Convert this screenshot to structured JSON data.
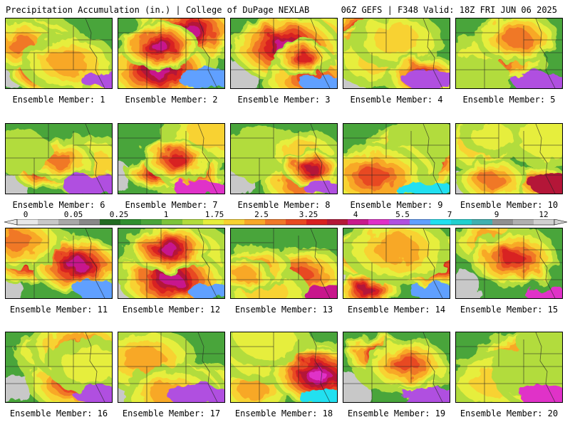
{
  "header": {
    "left": "Precipitation Accumulation (in.) | College of DuPage NEXLAB",
    "right": "06Z GEFS | F348 Valid: 18Z FRI JUN 06 2025"
  },
  "member_prefix": "Ensemble Member:",
  "members": [
    {
      "id": 1,
      "label": "Ensemble Member: 1",
      "seed": 11,
      "wet": 0.6,
      "max_level": 15
    },
    {
      "id": 2,
      "label": "Ensemble Member: 2",
      "seed": 23,
      "wet": 0.62,
      "max_level": 16
    },
    {
      "id": 3,
      "label": "Ensemble Member: 3",
      "seed": 37,
      "wet": 0.63,
      "max_level": 16
    },
    {
      "id": 4,
      "label": "Ensemble Member: 4",
      "seed": 41,
      "wet": 0.58,
      "max_level": 15
    },
    {
      "id": 5,
      "label": "Ensemble Member: 5",
      "seed": 53,
      "wet": 0.64,
      "max_level": 15
    },
    {
      "id": 6,
      "label": "Ensemble Member: 6",
      "seed": 67,
      "wet": 0.55,
      "max_level": 15
    },
    {
      "id": 7,
      "label": "Ensemble Member: 7",
      "seed": 71,
      "wet": 0.48,
      "max_level": 14
    },
    {
      "id": 8,
      "label": "Ensemble Member: 8",
      "seed": 83,
      "wet": 0.62,
      "max_level": 15
    },
    {
      "id": 9,
      "label": "Ensemble Member: 9",
      "seed": 97,
      "wet": 0.66,
      "max_level": 17
    },
    {
      "id": 10,
      "label": "Ensemble Member: 10",
      "seed": 101,
      "wet": 0.5,
      "max_level": 12
    },
    {
      "id": 11,
      "label": "Ensemble Member: 11",
      "seed": 113,
      "wet": 0.62,
      "max_level": 16
    },
    {
      "id": 12,
      "label": "Ensemble Member: 12",
      "seed": 127,
      "wet": 0.66,
      "max_level": 16
    },
    {
      "id": 13,
      "label": "Ensemble Member: 13",
      "seed": 131,
      "wet": 0.5,
      "max_level": 13
    },
    {
      "id": 14,
      "label": "Ensemble Member: 14",
      "seed": 149,
      "wet": 0.58,
      "max_level": 16
    },
    {
      "id": 15,
      "label": "Ensemble Member: 15",
      "seed": 151,
      "wet": 0.55,
      "max_level": 14
    },
    {
      "id": 16,
      "label": "Ensemble Member: 16",
      "seed": 163,
      "wet": 0.6,
      "max_level": 15
    },
    {
      "id": 17,
      "label": "Ensemble Member: 17",
      "seed": 173,
      "wet": 0.6,
      "max_level": 15
    },
    {
      "id": 18,
      "label": "Ensemble Member: 18",
      "seed": 181,
      "wet": 0.7,
      "max_level": 17
    },
    {
      "id": 19,
      "label": "Ensemble Member: 19",
      "seed": 191,
      "wet": 0.62,
      "max_level": 15
    },
    {
      "id": 20,
      "label": "Ensemble Member: 20",
      "seed": 199,
      "wet": 0.6,
      "max_level": 14
    }
  ],
  "colorbar": {
    "labels": [
      "0",
      "0.05",
      "0.25",
      "1",
      "1.75",
      "2.5",
      "3.25",
      "4",
      "5.5",
      "7",
      "9",
      "12"
    ],
    "colors": [
      "#e8e8e8",
      "#c8c8c8",
      "#a8a8a8",
      "#888888",
      "#226b22",
      "#2f8f2f",
      "#4aa53a",
      "#7cc43a",
      "#b2dc3c",
      "#e6ee3c",
      "#f8d230",
      "#f8a828",
      "#f07828",
      "#e84a20",
      "#d82020",
      "#b41838",
      "#c8188c",
      "#e030c8",
      "#b050e0",
      "#60a0ff",
      "#20e0f0",
      "#20d0d0",
      "#40b0b0",
      "#909090",
      "#b0b0b0",
      "#d0d0d0"
    ]
  }
}
